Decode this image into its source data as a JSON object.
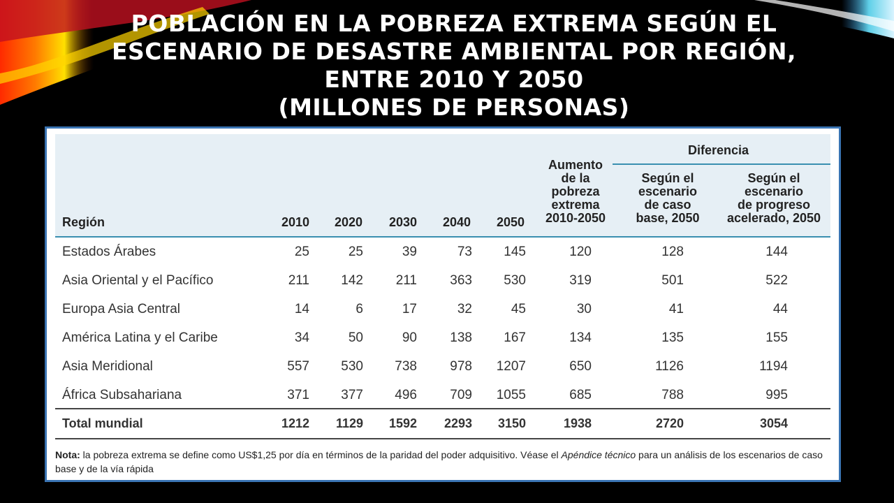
{
  "title_lines": [
    "POBLACIÓN EN LA POBREZA EXTREMA SEGÚN EL",
    "ESCENARIO DE DESASTRE AMBIENTAL POR REGIÓN,",
    "ENTRE 2010 Y 2050",
    "(MILLONES DE PERSONAS)"
  ],
  "table": {
    "group_header": "Diferencia",
    "columns": [
      "Región",
      "2010",
      "2020",
      "2030",
      "2040",
      "2050",
      "Aumento\nde la\npobreza\nextrema\n2010-2050",
      "Según el\nescenario\nde caso\nbase, 2050",
      "Según el\nescenario\nde progreso\nacelerado, 2050"
    ],
    "rows": [
      [
        "Estados Árabes",
        "25",
        "25",
        "39",
        "73",
        "145",
        "120",
        "128",
        "144"
      ],
      [
        "Asia Oriental y el Pacífico",
        "211",
        "142",
        "211",
        "363",
        "530",
        "319",
        "501",
        "522"
      ],
      [
        "Europa Asia Central",
        "14",
        "6",
        "17",
        "32",
        "45",
        "30",
        "41",
        "44"
      ],
      [
        "América Latina y el Caribe",
        "34",
        "50",
        "90",
        "138",
        "167",
        "134",
        "135",
        "155"
      ],
      [
        "Asia Meridional",
        "557",
        "530",
        "738",
        "978",
        "1207",
        "650",
        "1126",
        "1194"
      ],
      [
        "África Subsahariana",
        "371",
        "377",
        "496",
        "709",
        "1055",
        "685",
        "788",
        "995"
      ]
    ],
    "total": [
      "Total mundial",
      "1212",
      "1129",
      "1592",
      "2293",
      "3150",
      "1938",
      "2720",
      "3054"
    ]
  },
  "note": {
    "label": "Nota:",
    "text_1": " la pobreza extrema se define como US$1,25 por día en términos de la paridad del poder adquisitivo. Véase el ",
    "italic": "Apéndice técnico",
    "text_2": " para un análisis de los escenarios de caso base y de la vía rápida"
  },
  "colors": {
    "frame": "#3a74b3",
    "header_band": "#e6eff5",
    "header_rule": "#3a8fb0"
  }
}
